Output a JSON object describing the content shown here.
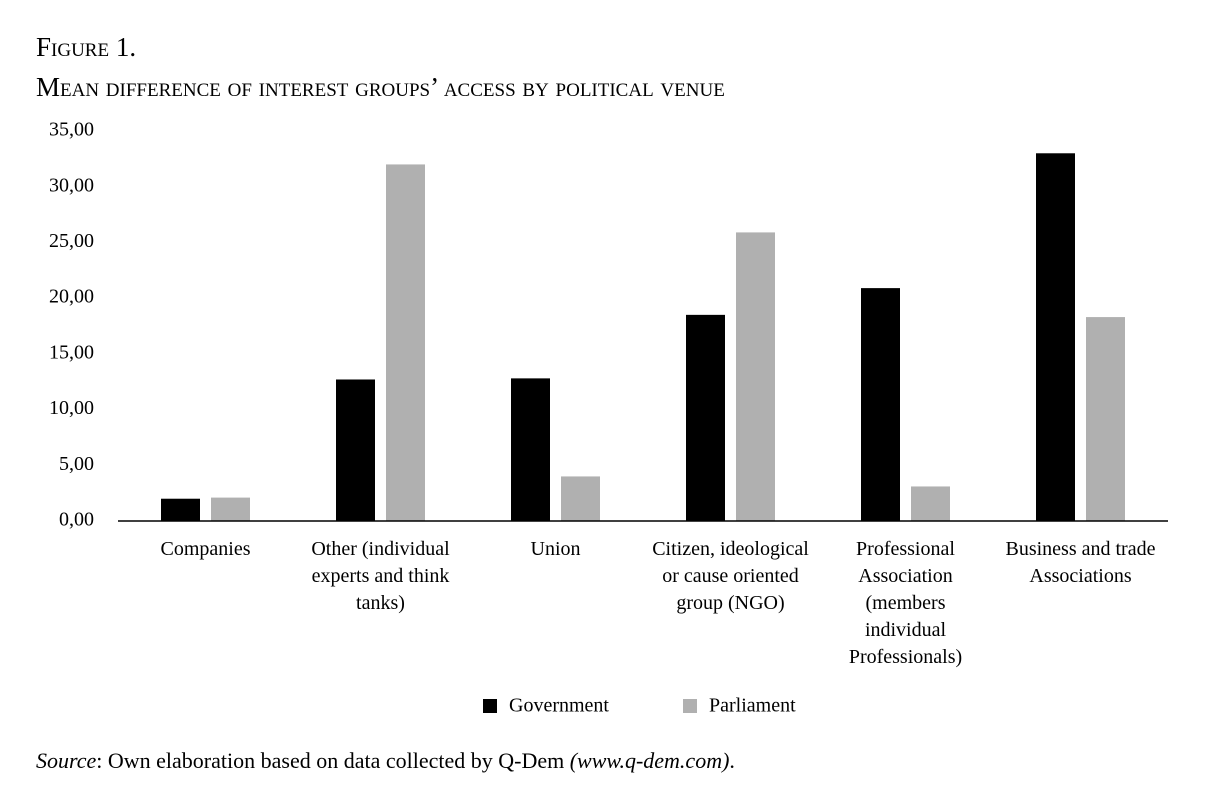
{
  "chart_data": {
    "type": "bar",
    "figure_label": "Figure 1.",
    "title": "Mean difference of interest groups’ access by political venue",
    "categories": [
      "Companies",
      "Other (individual experts and think tanks)",
      "Union",
      "Citizen, ideological or cause oriented group (NGO)",
      "Professional Association (members individual Professionals)",
      "Business and trade Associations"
    ],
    "series": [
      {
        "name": "Government",
        "color": "#000000",
        "values": [
          2.0,
          12.7,
          12.8,
          18.5,
          20.9,
          33.0
        ]
      },
      {
        "name": "Parliament",
        "color": "#b0b0b0",
        "values": [
          2.1,
          32.0,
          4.0,
          25.9,
          3.1,
          18.3
        ]
      }
    ],
    "ylim": [
      0,
      35
    ],
    "yticks": [
      {
        "value": 0,
        "label": "0,00"
      },
      {
        "value": 5,
        "label": "5,00"
      },
      {
        "value": 10,
        "label": "10,00"
      },
      {
        "value": 15,
        "label": "15,00"
      },
      {
        "value": 20,
        "label": "20,00"
      },
      {
        "value": 25,
        "label": "25,00"
      },
      {
        "value": 30,
        "label": "30,00"
      },
      {
        "value": 35,
        "label": "35,00"
      }
    ],
    "grid": false,
    "legend": "bottom",
    "source": {
      "label": "Source",
      "text": ": Own elaboration based on data collected by Q-Dem ",
      "link": "(www.q-dem.com)",
      "end": "."
    }
  }
}
